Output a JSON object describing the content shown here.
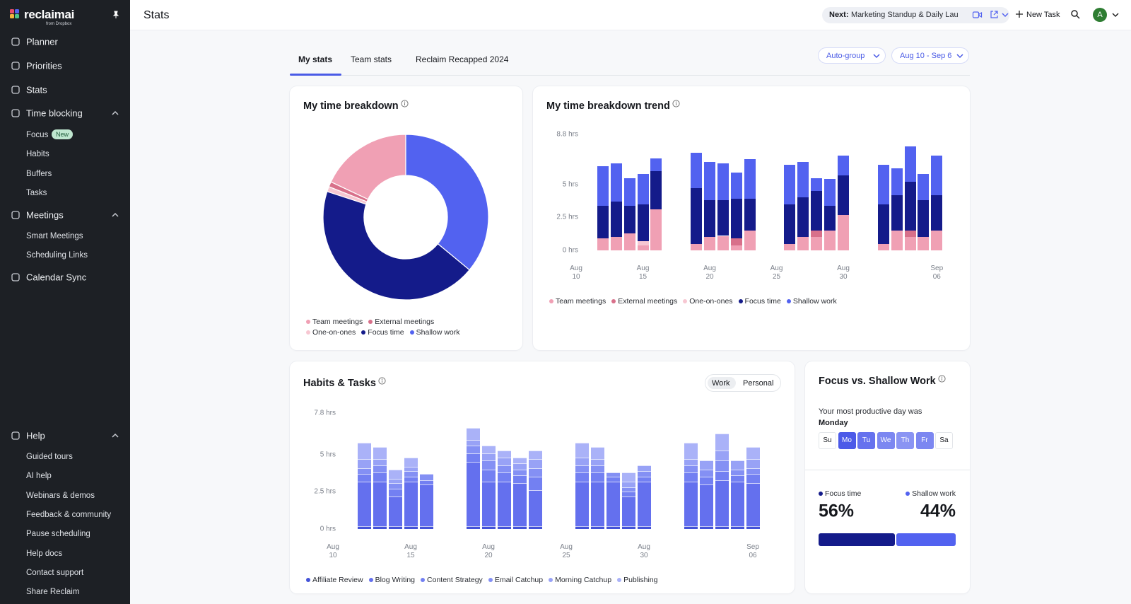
{
  "logo": {
    "name": "reclaimai",
    "sub": "from Dropbox"
  },
  "sidebar": {
    "nav": [
      "Planner",
      "Priorities",
      "Stats"
    ],
    "time_blocking": {
      "label": "Time blocking",
      "items": [
        "Focus",
        "Habits",
        "Buffers",
        "Tasks"
      ],
      "badge": "New"
    },
    "meetings": {
      "label": "Meetings",
      "items": [
        "Smart Meetings",
        "Scheduling Links"
      ]
    },
    "calendar_sync": "Calendar Sync",
    "help": {
      "label": "Help",
      "items": [
        "Guided tours",
        "AI help",
        "Webinars & demos",
        "Feedback & community",
        "Pause scheduling",
        "Help docs",
        "Contact support",
        "Share Reclaim"
      ]
    }
  },
  "header": {
    "title": "Stats",
    "next_label": "Next:",
    "next_event": "Marketing Standup & Daily Lau...",
    "new_task": "New Task",
    "avatar": "A"
  },
  "tabs": [
    "My stats",
    "Team stats",
    "Reclaim Recapped 2024"
  ],
  "filters": [
    "Auto-group",
    "Aug 10 - Sep 6"
  ],
  "chart_data": [
    {
      "type": "donut",
      "title": "My time breakdown",
      "direction": "counterclockwise",
      "categories": [
        "Team meetings",
        "External meetings",
        "One-on-ones",
        "Focus time",
        "Shallow work"
      ],
      "values": [
        18,
        1,
        1,
        44,
        36
      ],
      "colors": [
        "#f0a0b4",
        "#d8708a",
        "#f7c7d2",
        "#141b8a",
        "#5262f0"
      ]
    },
    {
      "type": "stacked_bar",
      "title": "My time breakdown trend",
      "categories": [
        "Aug 10",
        null,
        null,
        null,
        null,
        "Aug 15",
        null,
        null,
        null,
        null,
        "Aug 20",
        null,
        null,
        null,
        null,
        "Aug 25",
        null,
        null,
        null,
        null,
        "Aug 30",
        null,
        null,
        null,
        null,
        null,
        null,
        "Sep 06"
      ],
      "ylim": [
        0,
        8.8
      ],
      "yticks": [
        {
          "value": 0,
          "label": "0 hrs"
        },
        {
          "value": 2.5,
          "label": "2.5 hrs"
        },
        {
          "value": 5,
          "label": "5 hrs"
        },
        {
          "value": 8.8,
          "label": "8.8 hrs"
        }
      ],
      "series": [
        {
          "name": "Team meetings",
          "color": "#f0a0b4",
          "values": [
            null,
            null,
            0.9,
            1.0,
            1.3,
            0.4,
            3.1,
            null,
            null,
            0.5,
            1.0,
            1.1,
            0.4,
            1.5,
            null,
            null,
            0.5,
            1.0,
            1.0,
            1.5,
            2.7,
            null,
            null,
            0.5,
            1.5,
            1.0,
            1.0,
            1.5
          ]
        },
        {
          "name": "External meetings",
          "color": "#d8708a",
          "values": [
            null,
            null,
            0,
            0,
            0,
            0,
            0,
            null,
            null,
            0,
            0,
            0,
            0.5,
            0,
            null,
            null,
            0,
            0,
            0.5,
            0,
            0,
            null,
            null,
            0,
            0,
            0.5,
            0,
            0
          ]
        },
        {
          "name": "One-on-ones",
          "color": "#f7c7d2",
          "values": [
            null,
            null,
            0,
            0,
            0,
            0.3,
            0,
            null,
            null,
            0,
            0,
            0,
            0,
            0,
            null,
            null,
            0,
            0,
            0,
            0,
            0,
            null,
            null,
            0,
            0,
            0,
            0,
            0
          ]
        },
        {
          "name": "Focus time",
          "color": "#141b8a",
          "values": [
            null,
            null,
            2.5,
            2.7,
            2.1,
            2.8,
            2.9,
            null,
            null,
            4.2,
            2.8,
            2.7,
            3.0,
            2.4,
            null,
            null,
            3.0,
            3.0,
            3.0,
            1.9,
            3.0,
            null,
            null,
            3.0,
            2.7,
            3.7,
            2.8,
            2.7
          ]
        },
        {
          "name": "Shallow work",
          "color": "#5262f0",
          "values": [
            null,
            null,
            3.0,
            2.9,
            2.1,
            2.3,
            1.0,
            null,
            null,
            2.7,
            2.9,
            2.8,
            2.0,
            3.0,
            null,
            null,
            3.0,
            2.7,
            1.0,
            2.0,
            1.5,
            null,
            null,
            3.0,
            2.0,
            2.7,
            2.0,
            3.0
          ]
        }
      ]
    },
    {
      "type": "stacked_bar",
      "title": "Habits & Tasks",
      "toggle": [
        "Work",
        "Personal"
      ],
      "categories": [
        "Aug 10",
        null,
        null,
        null,
        null,
        "Aug 15",
        null,
        null,
        null,
        null,
        "Aug 20",
        null,
        null,
        null,
        null,
        "Aug 25",
        null,
        null,
        null,
        null,
        "Aug 30",
        null,
        null,
        null,
        null,
        null,
        null,
        "Sep 06"
      ],
      "ylim": [
        0,
        7.8
      ],
      "yticks": [
        {
          "value": 0,
          "label": "0 hrs"
        },
        {
          "value": 2.5,
          "label": "2.5 hrs"
        },
        {
          "value": 5,
          "label": "5 hrs"
        },
        {
          "value": 7.8,
          "label": "7.8 hrs"
        }
      ],
      "series": [
        {
          "name": "Affiliate Review",
          "color": "#4453d8",
          "values": [
            null,
            null,
            0.2,
            0.2,
            0.2,
            0.2,
            0.2,
            null,
            null,
            0.2,
            0.2,
            0.2,
            0.2,
            0.2,
            null,
            null,
            0.2,
            0.2,
            0.2,
            0.2,
            0.2,
            null,
            null,
            0.2,
            0.2,
            0.2,
            0.2,
            0.2
          ]
        },
        {
          "name": "Blog Writing",
          "color": "#6470ee",
          "values": [
            null,
            null,
            3.0,
            3.0,
            2.0,
            3.0,
            2.8,
            null,
            null,
            4.3,
            3.0,
            3.0,
            2.9,
            2.4,
            null,
            null,
            3.0,
            3.0,
            3.0,
            2.0,
            3.0,
            null,
            null,
            3.0,
            2.8,
            3.1,
            3.0,
            2.9
          ]
        },
        {
          "name": "Content Strategy",
          "color": "#7380f2",
          "values": [
            null,
            null,
            0.5,
            0.6,
            0.5,
            0.3,
            0.3,
            null,
            null,
            0.6,
            0.8,
            0.6,
            0.5,
            0.9,
            null,
            null,
            0.6,
            0.6,
            0.3,
            0.3,
            0.3,
            null,
            null,
            0.6,
            0.5,
            0.6,
            0.4,
            0.6
          ]
        },
        {
          "name": "Email Catchup",
          "color": "#8490f4",
          "values": [
            null,
            null,
            0.4,
            0.5,
            0.4,
            0.4,
            0.4,
            null,
            null,
            0.5,
            0.6,
            0.5,
            0.4,
            0.6,
            null,
            null,
            0.5,
            0.5,
            0.3,
            0.3,
            0.4,
            null,
            null,
            0.5,
            0.5,
            0.7,
            0.4,
            0.4
          ]
        },
        {
          "name": "Morning Catchup",
          "color": "#98a2f6",
          "values": [
            null,
            null,
            0.6,
            0.4,
            0.3,
            0.3,
            0,
            null,
            null,
            0.4,
            0.5,
            0.5,
            0.4,
            0.6,
            null,
            null,
            0.5,
            0.4,
            0,
            0.4,
            0.4,
            null,
            null,
            0.4,
            0.6,
            0.7,
            0.6,
            0.6
          ]
        },
        {
          "name": "Publishing",
          "color": "#aab2f8",
          "values": [
            null,
            null,
            1.1,
            0.8,
            0.6,
            0.6,
            0,
            null,
            null,
            0.8,
            0.5,
            0.5,
            0.4,
            0.6,
            null,
            null,
            1.0,
            0.8,
            0,
            0.6,
            0,
            null,
            null,
            1.1,
            0,
            1.1,
            0,
            0.8
          ]
        }
      ]
    },
    {
      "type": "split",
      "title": "Focus vs. Shallow Work",
      "subtitle": "Your most productive day was",
      "highlight": "Monday",
      "days": [
        "Su",
        "Mo",
        "Tu",
        "We",
        "Th",
        "Fr",
        "Sa"
      ],
      "day_colors": [
        "#ffffff",
        "#4c5ae8",
        "#6672ee",
        "#7c87f1",
        "#8a94f3",
        "#7c87f1",
        "#ffffff"
      ],
      "categories": [
        "Focus time",
        "Shallow work"
      ],
      "values": [
        56,
        44
      ],
      "value_labels": [
        "56%",
        "44%"
      ],
      "colors": [
        "#141b8a",
        "#5262f0"
      ]
    }
  ]
}
